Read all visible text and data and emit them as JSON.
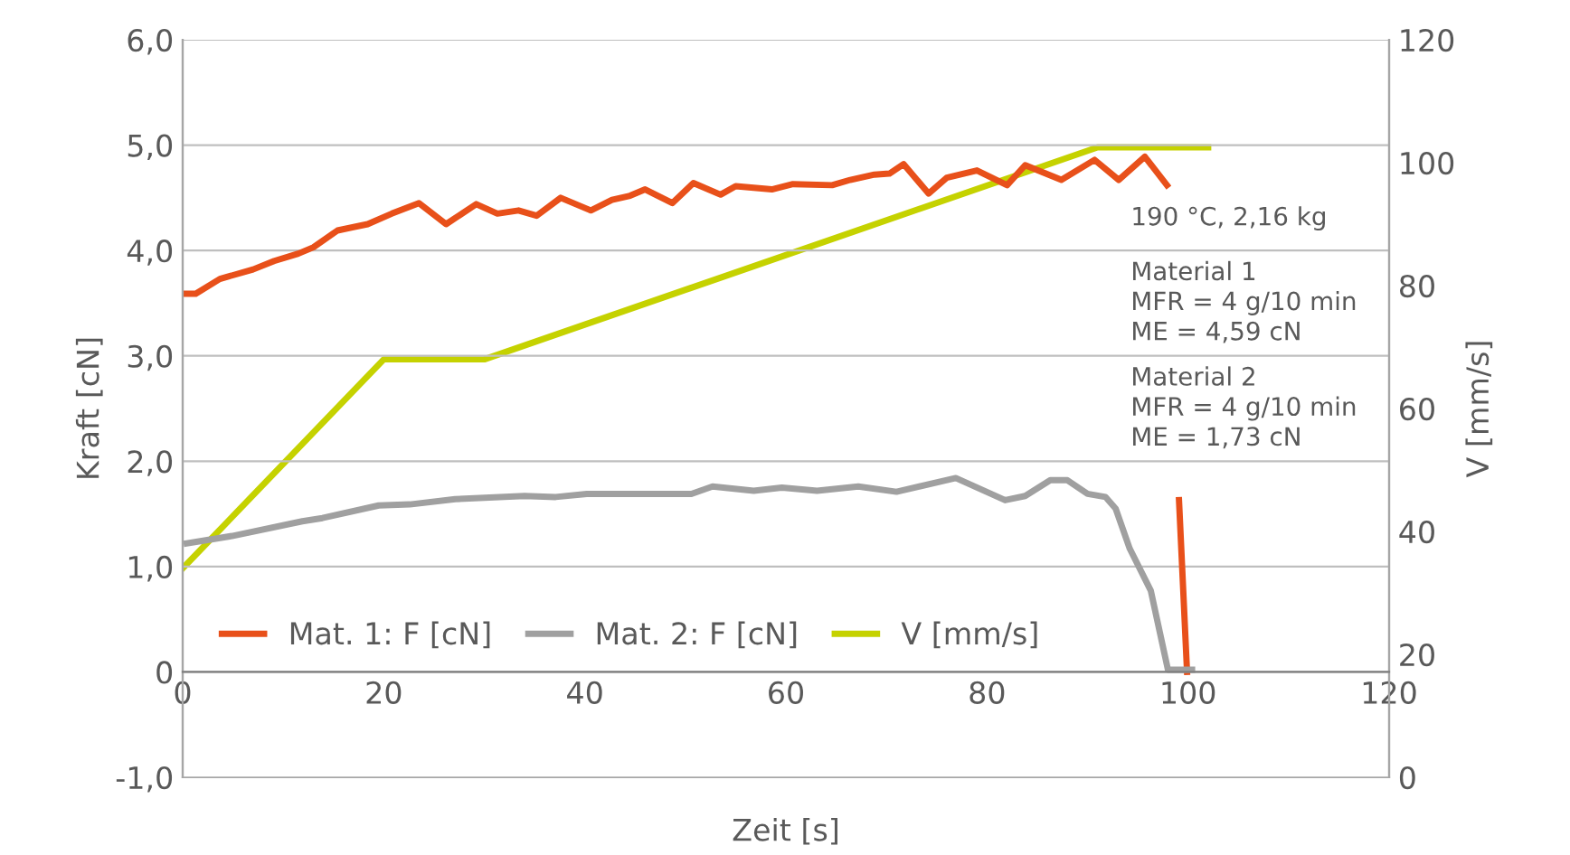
{
  "chart_data": {
    "type": "line",
    "xlabel": "Zeit [s]",
    "ylabel": "Kraft [cN]",
    "y2label": "V [mm/s]",
    "xlim": [
      0,
      120
    ],
    "xticks": [
      0,
      20,
      40,
      60,
      80,
      100,
      120
    ],
    "ylim": [
      -1,
      6
    ],
    "yticks": [
      {
        "value": -1,
        "label": "-1,0"
      },
      0,
      {
        "value": 1,
        "label": "1,0"
      },
      {
        "value": 2,
        "label": "2,0"
      },
      {
        "value": 3,
        "label": "3,0"
      },
      {
        "value": 4,
        "label": "4,0"
      },
      {
        "value": 5,
        "label": "5,0"
      },
      {
        "value": 6,
        "label": "6,0"
      }
    ],
    "y2lim": [
      0,
      120
    ],
    "y2ticks": [
      0,
      20,
      40,
      60,
      80,
      100,
      120
    ],
    "grid": "y",
    "legend": "bottom",
    "annotations": [
      "190 °C, 2,16 kg",
      "Material 1\nMFR = 4 g/10 min\nME = 4,59 cN",
      "Material 2\nMFR = 4 g/10 min\nME = 1,73 cN"
    ],
    "series": [
      {
        "name": "Mat. 1: F [cN]",
        "color": "#e8501a",
        "x": [
          0.0,
          1.3,
          3.7,
          7.0,
          9.1,
          11.5,
          13.0,
          15.4,
          18.4,
          20.8,
          23.5,
          26.2,
          29.2,
          31.3,
          33.4,
          35.2,
          37.6,
          40.6,
          42.7,
          44.5,
          46.0,
          48.7,
          50.8,
          53.5,
          55.0,
          58.6,
          60.7,
          64.6,
          66.4,
          68.8,
          70.3,
          71.7,
          74.2,
          76.0,
          79.0,
          82.0,
          83.8,
          87.4,
          90.7,
          93.1,
          95.7,
          97.9,
          98.5,
          99.1,
          99.9
        ],
        "values": [
          3.59,
          3.59,
          3.73,
          3.82,
          3.9,
          3.97,
          4.03,
          4.19,
          4.25,
          4.35,
          4.45,
          4.25,
          4.44,
          4.35,
          4.38,
          4.33,
          4.5,
          4.38,
          4.48,
          4.52,
          4.58,
          4.45,
          4.64,
          4.53,
          4.61,
          4.58,
          4.63,
          4.62,
          4.67,
          4.72,
          4.73,
          4.82,
          4.54,
          4.69,
          4.76,
          4.62,
          4.81,
          4.67,
          4.86,
          4.67,
          4.89,
          4.62,
          null,
          1.63,
          0.0
        ]
      },
      {
        "name": "Mat. 2: F [cN]",
        "color": "#a0a0a0",
        "x": [
          0.4,
          4.9,
          11.9,
          13.9,
          19.5,
          22.6,
          27.1,
          34.0,
          37.1,
          40.2,
          50.6,
          52.7,
          56.8,
          59.6,
          63.1,
          67.2,
          71.0,
          76.9,
          81.8,
          83.8,
          86.3,
          88.0,
          90.0,
          91.8,
          92.8,
          94.2,
          96.3,
          98.0,
          100.4
        ],
        "values": [
          1.22,
          1.29,
          1.43,
          1.46,
          1.58,
          1.59,
          1.64,
          1.67,
          1.66,
          1.69,
          1.69,
          1.76,
          1.72,
          1.75,
          1.72,
          1.76,
          1.71,
          1.84,
          1.63,
          1.67,
          1.82,
          1.82,
          1.69,
          1.66,
          1.55,
          1.17,
          0.77,
          0.02,
          0.02
        ]
      },
      {
        "name": "V [mm/s]",
        "color": "#c5d200",
        "axis": "y2",
        "x": [
          0,
          20,
          30,
          91,
          102
        ],
        "values": [
          34,
          68,
          68,
          102.5,
          102.5
        ]
      }
    ]
  }
}
